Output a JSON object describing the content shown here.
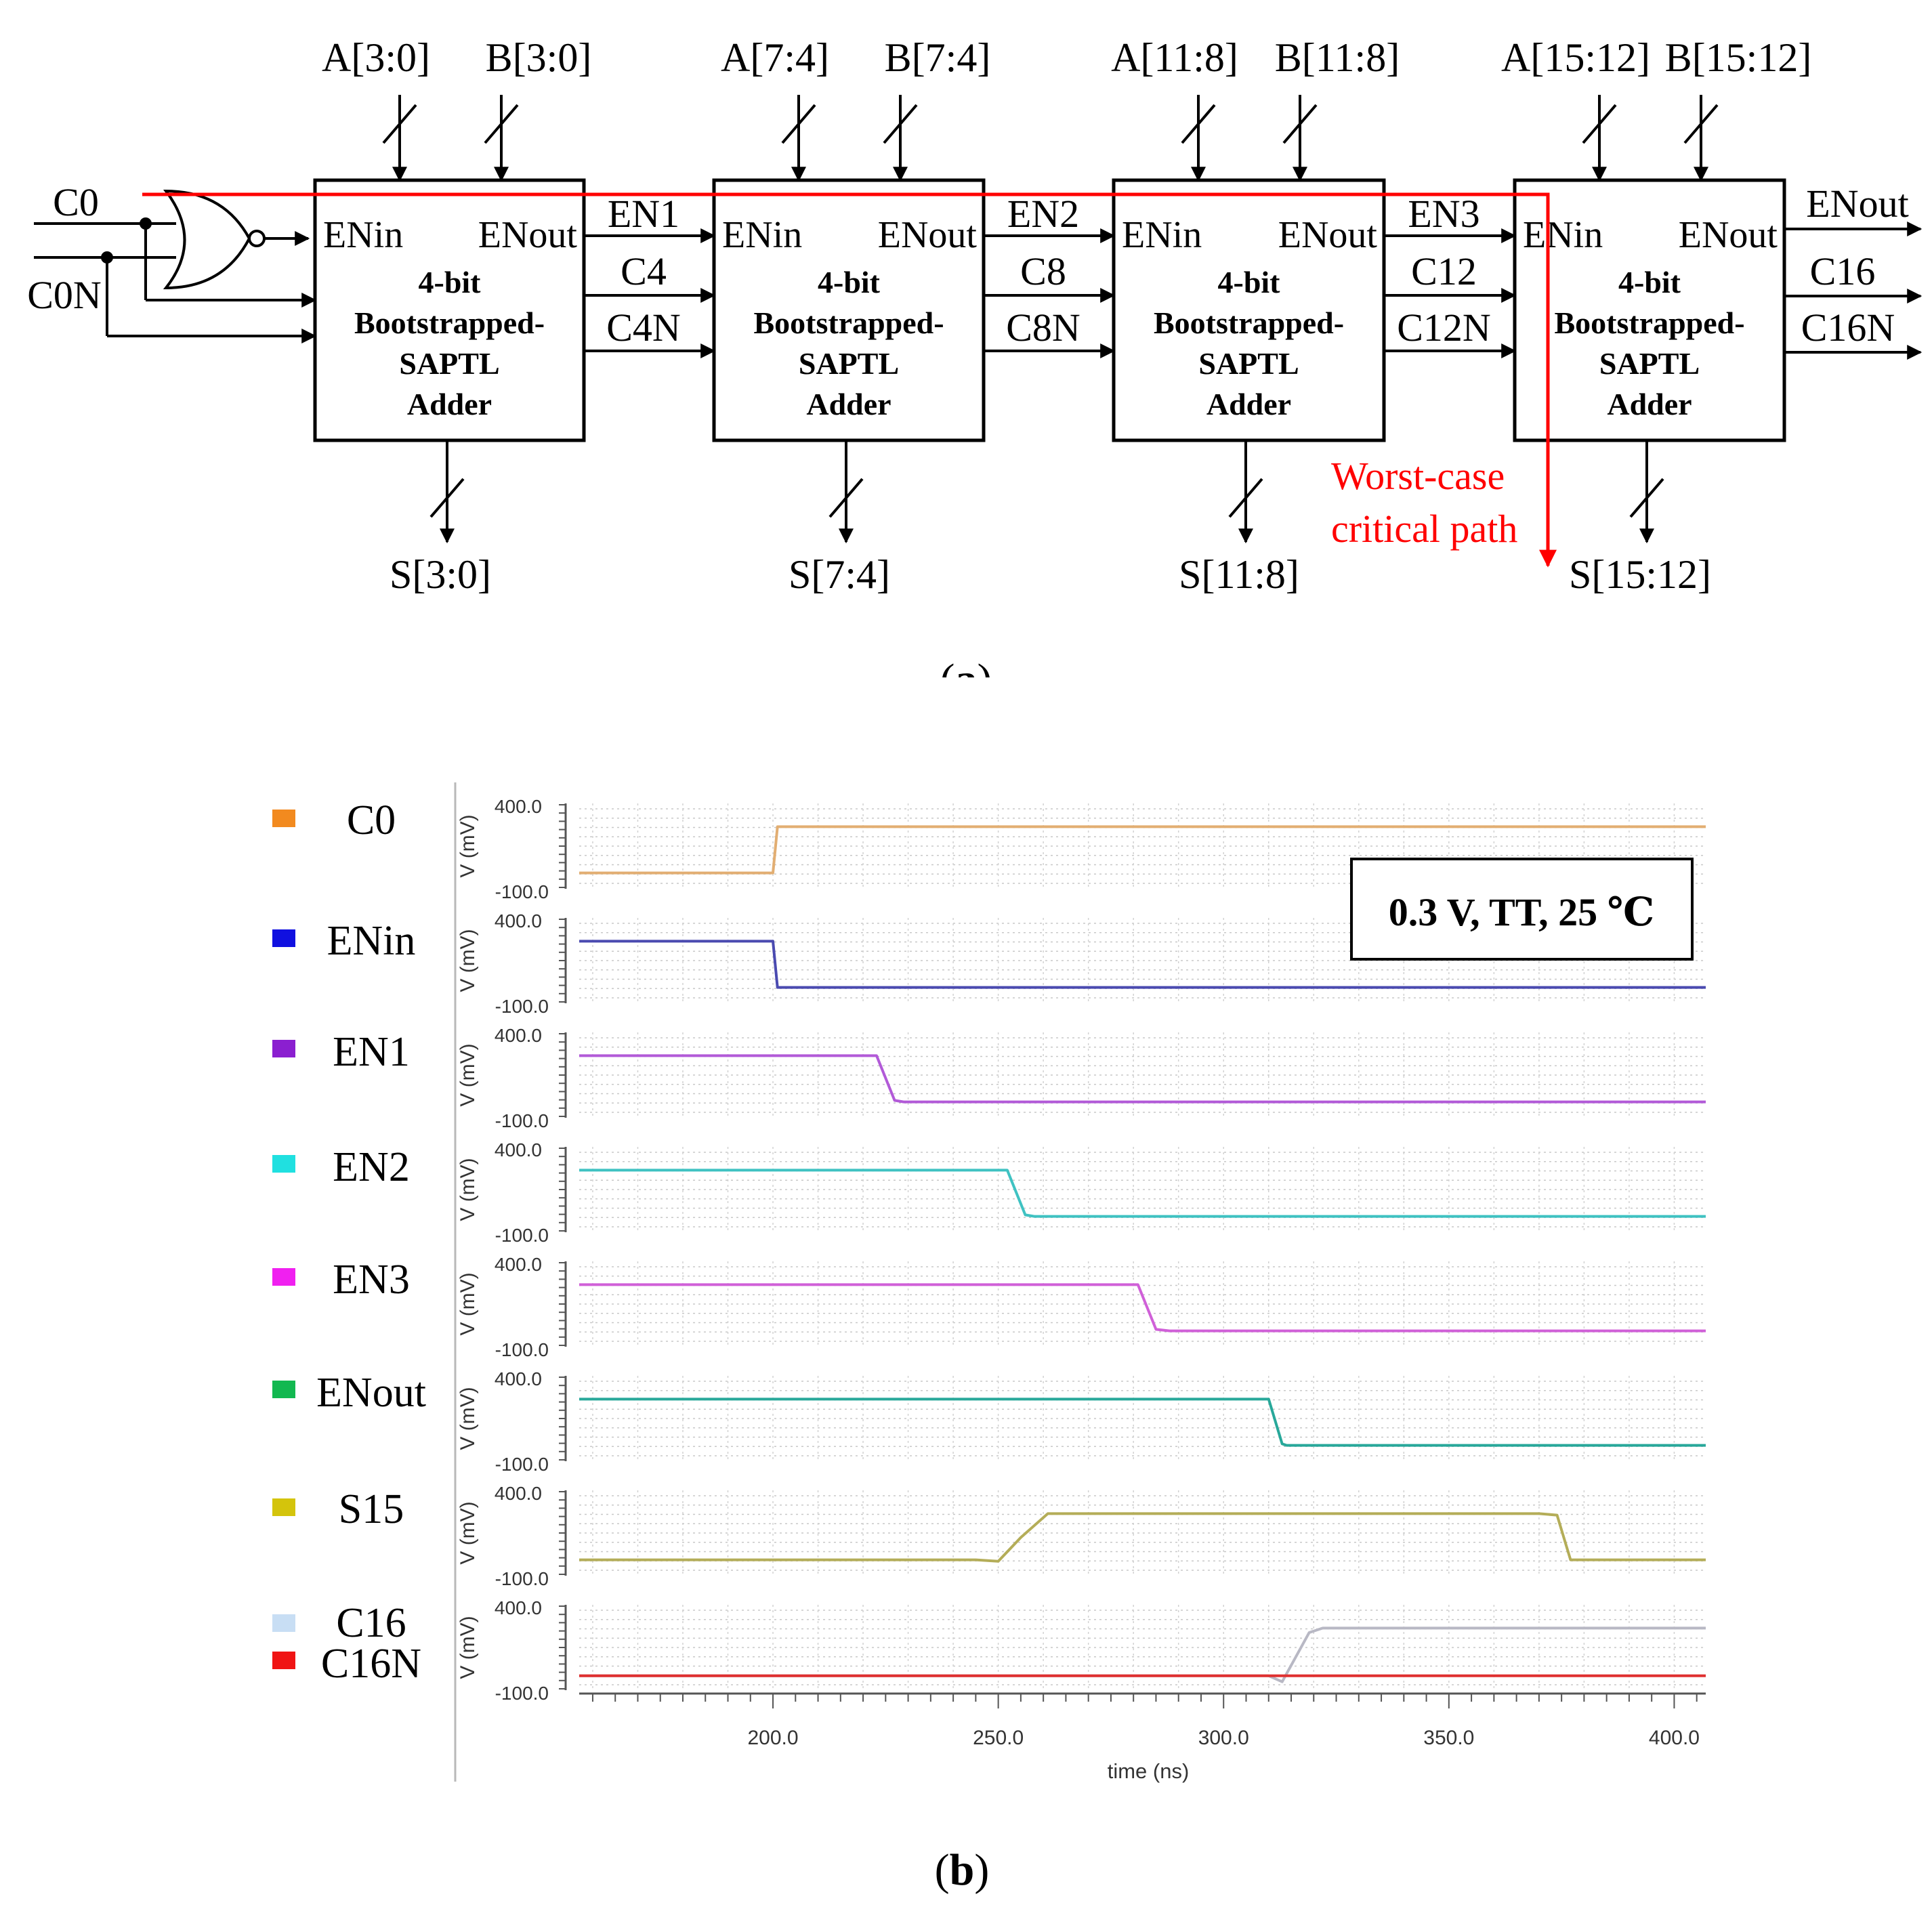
{
  "figure": {
    "panel_a_label": "(a)",
    "panel_b_label": "(b)"
  },
  "diagram": {
    "inputs": {
      "c0": "C0",
      "c0n": "C0N"
    },
    "blocks": [
      {
        "a_bus": "A[3:0]",
        "b_bus": "B[3:0]",
        "s_bus": "S[3:0]",
        "en_in": "ENin",
        "en_out": "ENout",
        "title": [
          "4-bit",
          "Bootstrapped-",
          "SAPTL",
          "Adder"
        ]
      },
      {
        "a_bus": "A[7:4]",
        "b_bus": "B[7:4]",
        "s_bus": "S[7:4]",
        "en_in": "ENin",
        "en_out": "ENout",
        "title": [
          "4-bit",
          "Bootstrapped-",
          "SAPTL",
          "Adder"
        ]
      },
      {
        "a_bus": "A[11:8]",
        "b_bus": "B[11:8]",
        "s_bus": "S[11:8]",
        "en_in": "ENin",
        "en_out": "ENout",
        "title": [
          "4-bit",
          "Bootstrapped-",
          "SAPTL",
          "Adder"
        ]
      },
      {
        "a_bus": "A[15:12]",
        "b_bus": "B[15:12]",
        "s_bus": "S[15:12]",
        "en_in": "ENin",
        "en_out": "ENout",
        "title": [
          "4-bit",
          "Bootstrapped-",
          "SAPTL",
          "Adder"
        ]
      }
    ],
    "links": [
      {
        "en": "EN1",
        "c": "C4",
        "cn": "C4N"
      },
      {
        "en": "EN2",
        "c": "C8",
        "cn": "C8N"
      },
      {
        "en": "EN3",
        "c": "C12",
        "cn": "C12N"
      }
    ],
    "outputs": {
      "en": "ENout",
      "c": "C16",
      "cn": "C16N"
    },
    "critical_path": [
      "Worst-case",
      "critical path"
    ],
    "critical_color": "#ff0000"
  },
  "chart_data": {
    "type": "line",
    "title": "0.3 V, TT, 25 ℃",
    "xlabel": "time (ns)",
    "ylabel": "V (mV)",
    "xlim": [
      157,
      407
    ],
    "ylim": [
      -100.0,
      400.0
    ],
    "ytick_labels": [
      "400.0",
      "-100.0"
    ],
    "xticks": [
      200.0,
      250.0,
      300.0,
      350.0,
      400.0
    ],
    "xtick_labels": [
      "200.0",
      "250.0",
      "300.0",
      "350.0",
      "400.0"
    ],
    "series": [
      {
        "name": "C0",
        "color": "#f28a1f",
        "trace": "#e2ae72",
        "points": [
          [
            157,
            -30
          ],
          [
            200,
            -30
          ],
          [
            201,
            280
          ],
          [
            407,
            280
          ]
        ]
      },
      {
        "name": "ENin",
        "color": "#1010e0",
        "trace": "#4a4ab0",
        "points": [
          [
            157,
            280
          ],
          [
            200,
            280
          ],
          [
            201,
            -30
          ],
          [
            407,
            -30
          ]
        ]
      },
      {
        "name": "EN1",
        "color": "#8b1fd0",
        "trace": "#b25ad8",
        "points": [
          [
            157,
            280
          ],
          [
            223,
            280
          ],
          [
            227,
            -20
          ],
          [
            229,
            -30
          ],
          [
            407,
            -30
          ]
        ]
      },
      {
        "name": "EN2",
        "color": "#20e0e0",
        "trace": "#3fc2c2",
        "points": [
          [
            157,
            280
          ],
          [
            252,
            280
          ],
          [
            256,
            -20
          ],
          [
            258,
            -30
          ],
          [
            407,
            -30
          ]
        ]
      },
      {
        "name": "EN3",
        "color": "#f020f0",
        "trace": "#d060d8",
        "points": [
          [
            157,
            280
          ],
          [
            281,
            280
          ],
          [
            285,
            -20
          ],
          [
            288,
            -30
          ],
          [
            407,
            -30
          ]
        ]
      },
      {
        "name": "ENout",
        "color": "#12b850",
        "trace": "#28a89a",
        "points": [
          [
            157,
            280
          ],
          [
            310,
            280
          ],
          [
            313,
            -20
          ],
          [
            314,
            -30
          ],
          [
            407,
            -30
          ]
        ]
      },
      {
        "name": "S15",
        "color": "#d4c40c",
        "trace": "#b4ad58",
        "points": [
          [
            157,
            -30
          ],
          [
            245,
            -30
          ],
          [
            250,
            -40
          ],
          [
            255,
            120
          ],
          [
            261,
            280
          ],
          [
            370,
            280
          ],
          [
            374,
            270
          ],
          [
            377,
            -30
          ],
          [
            407,
            -30
          ]
        ]
      },
      {
        "name": "C16",
        "color": "#c8def4",
        "trace": "#b8b8c4",
        "points": [
          [
            157,
            -40
          ],
          [
            310,
            -40
          ],
          [
            313,
            -80
          ],
          [
            319,
            250
          ],
          [
            322,
            280
          ],
          [
            407,
            280
          ]
        ]
      },
      {
        "name": "C16N",
        "color": "#f01414",
        "trace": "#e03030",
        "points": [
          [
            157,
            -40
          ],
          [
            407,
            -40
          ]
        ]
      }
    ]
  }
}
